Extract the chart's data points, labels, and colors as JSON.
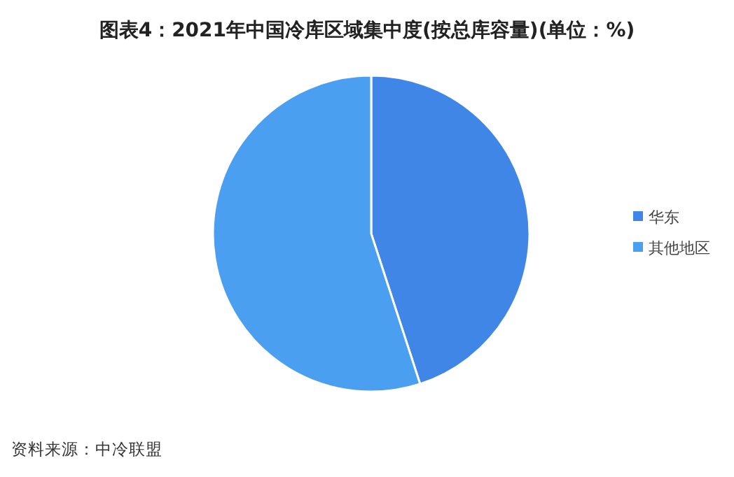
{
  "chart_data": {
    "type": "pie",
    "title": "图表4：2021年中国冷库区域集中度(按总库容量)(单位：%)",
    "categories": [
      "华东",
      "其他地区"
    ],
    "values": [
      45,
      55
    ],
    "colors": [
      "#3f86e6",
      "#4a9ff0"
    ],
    "legend": "right",
    "annotations": [
      "资料来源：中冷联盟"
    ]
  }
}
